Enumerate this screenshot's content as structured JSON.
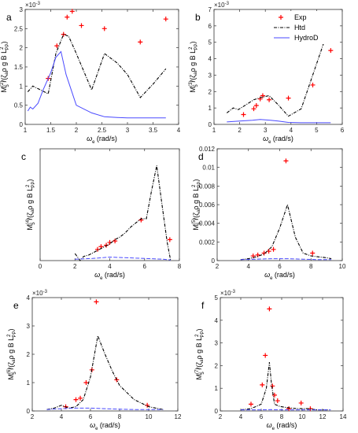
{
  "legend": {
    "placement": "top-right of panel b",
    "entries": [
      "Exp",
      "Htd",
      "HydroD"
    ]
  },
  "colors": {
    "exp": "#ff0000",
    "htd": "#000000",
    "hydrod": "#4a4aff"
  },
  "chart_data": [
    {
      "type": "line",
      "panel_label": "a",
      "exponent": "×10",
      "exp_sup": "-3",
      "ylabel_base": "M",
      "ylabel_sup": "(2)",
      "ylabel_sub": "5",
      "ylabel_rest": "/(ζ",
      "ylabel_a": "a",
      "ylabel_tail": "ρ g B L",
      "ylabel_pp": "PP",
      "ylabel_two": "2",
      "ylabel_close": ")",
      "xlabel_main": "ω",
      "xlabel_sub": "e",
      "xlabel_unit": " (rad/s)",
      "xlim": [
        1,
        4
      ],
      "ylim": [
        0,
        3
      ],
      "xticks": [
        1,
        1.5,
        2,
        2.5,
        3,
        3.5,
        4
      ],
      "yticks": [
        0,
        0.5,
        1,
        1.5,
        2,
        2.5,
        3
      ],
      "series": [
        {
          "name": "Exp",
          "style": "marker",
          "x": [
            1.45,
            1.62,
            1.75,
            1.82,
            1.92,
            2.1,
            2.55,
            3.25,
            3.75
          ],
          "y": [
            1.2,
            2.05,
            2.35,
            2.8,
            2.95,
            2.58,
            2.5,
            2.15,
            2.75
          ]
        },
        {
          "name": "Htd",
          "style": "dashdot",
          "x": [
            1.05,
            1.15,
            1.3,
            1.45,
            1.6,
            1.75,
            1.85,
            2.0,
            2.3,
            2.55,
            2.8,
            3.0,
            3.25,
            3.5,
            3.75
          ],
          "y": [
            0.85,
            1.0,
            0.9,
            0.8,
            1.85,
            2.35,
            2.3,
            1.85,
            0.9,
            1.85,
            1.6,
            1.3,
            0.7,
            1.05,
            1.45
          ]
        },
        {
          "name": "HydroD",
          "style": "solid",
          "x": [
            1.05,
            1.1,
            1.15,
            1.25,
            1.35,
            1.5,
            1.6,
            1.7,
            1.8,
            1.9,
            2.0,
            2.3,
            2.55,
            2.8,
            3.0,
            3.25,
            3.5,
            3.75
          ],
          "y": [
            0.35,
            0.45,
            0.4,
            0.55,
            0.9,
            1.35,
            1.75,
            1.9,
            1.3,
            0.9,
            0.5,
            0.3,
            0.2,
            0.18,
            0.17,
            0.17,
            0.17,
            0.17
          ]
        }
      ]
    },
    {
      "type": "line",
      "panel_label": "b",
      "exponent": "×10",
      "exp_sup": "-3",
      "ylabel_base": "M",
      "ylabel_sup": "(3)",
      "ylabel_sub": "5",
      "ylabel_rest": "/(ζ",
      "ylabel_a": "a",
      "ylabel_tail": "ρ g B L",
      "ylabel_pp": "PP",
      "ylabel_two": "2",
      "ylabel_close": ")",
      "xlabel_main": "ω",
      "xlabel_sub": "e",
      "xlabel_unit": " (rad/s)",
      "xlim": [
        1,
        6
      ],
      "ylim": [
        0,
        7
      ],
      "xticks": [
        1,
        2,
        3,
        4,
        5,
        6
      ],
      "yticks": [
        0,
        1,
        2,
        3,
        4,
        5,
        6,
        7
      ],
      "series": [
        {
          "name": "Exp",
          "style": "marker",
          "x": [
            2.15,
            2.55,
            2.65,
            2.8,
            2.9,
            3.15,
            3.9,
            4.85,
            5.55
          ],
          "y": [
            0.6,
            0.95,
            1.15,
            1.55,
            1.75,
            1.5,
            1.6,
            2.4,
            4.5
          ]
        },
        {
          "name": "Htd",
          "style": "dashdot",
          "x": [
            1.5,
            1.75,
            1.95,
            2.25,
            2.55,
            2.85,
            3.15,
            3.5,
            3.9,
            4.4,
            5.55
          ],
          "y": [
            0.7,
            1.0,
            0.9,
            1.2,
            1.5,
            1.65,
            1.75,
            1.2,
            0.5,
            0.95,
            6.2
          ]
        },
        {
          "name": "HydroD",
          "style": "solid",
          "x": [
            1.5,
            2.0,
            2.5,
            2.8,
            3.2,
            3.5,
            3.9,
            4.4,
            5.0,
            5.55
          ],
          "y": [
            0.15,
            0.2,
            0.25,
            0.3,
            0.25,
            0.2,
            0.12,
            0.1,
            0.1,
            0.1
          ]
        }
      ]
    },
    {
      "type": "line",
      "panel_label": "c",
      "exponent": "",
      "exp_sup": "",
      "ylabel_base": "M",
      "ylabel_sup": "(4)",
      "ylabel_sub": "5",
      "ylabel_rest": "/(ζ",
      "ylabel_a": "a",
      "ylabel_tail": "ρ g B L",
      "ylabel_pp": "PP",
      "ylabel_two": "2",
      "ylabel_close": ")",
      "xlabel_main": "ω",
      "xlabel_sub": "e",
      "xlabel_unit": " (rad/s)",
      "xlim": [
        0,
        8
      ],
      "ylim": [
        0,
        8
      ],
      "xticks": [
        0,
        2,
        4,
        6,
        8
      ],
      "yticks": [],
      "series": [
        {
          "name": "Exp",
          "style": "marker",
          "x": [
            3.3,
            3.5,
            3.8,
            4.0,
            4.3,
            5.8,
            7.45
          ],
          "y": [
            0.8,
            1.0,
            1.1,
            1.3,
            1.4,
            2.9,
            1.5
          ]
        },
        {
          "name": "Htd",
          "style": "dashdot",
          "x": [
            2.0,
            2.3,
            2.5,
            2.8,
            3.1,
            3.4,
            3.7,
            4.0,
            4.3,
            4.6,
            4.9,
            5.2,
            5.5,
            5.8,
            6.1,
            6.4,
            6.7,
            7.0,
            7.3,
            7.5
          ],
          "y": [
            0.5,
            0.0,
            0.3,
            0.4,
            0.6,
            0.8,
            1.0,
            1.2,
            1.5,
            1.7,
            2.0,
            2.4,
            2.7,
            3.0,
            3.0,
            5.0,
            6.8,
            4.0,
            1.3,
            0.0
          ]
        },
        {
          "name": "HydroD",
          "style": "dashed",
          "x": [
            2.0,
            3.0,
            4.0,
            5.0,
            6.0,
            7.0,
            7.5
          ],
          "y": [
            0.1,
            0.15,
            0.25,
            0.2,
            0.15,
            0.1,
            0.05
          ]
        }
      ]
    },
    {
      "type": "line",
      "panel_label": "d",
      "exponent": "",
      "exp_sup": "",
      "ylabel_base": "M",
      "ylabel_sup": "(5)",
      "ylabel_sub": "5",
      "ylabel_rest": "/(ζ",
      "ylabel_a": "a",
      "ylabel_tail": "ρ g B L",
      "ylabel_pp": "PP",
      "ylabel_two": "2",
      "ylabel_close": ")",
      "xlabel_main": "ω",
      "xlabel_sub": "e",
      "xlabel_unit": " (rad/s)",
      "xlim": [
        2,
        10
      ],
      "ylim": [
        0,
        0.012
      ],
      "xticks": [
        2,
        4,
        6,
        8,
        10
      ],
      "yticks": [
        0,
        0.002,
        0.004,
        0.006,
        0.008,
        0.01,
        0.012
      ],
      "ytick_labels": [
        "0",
        "0.002",
        "0.004",
        "0.006",
        "0.008",
        "0.01",
        "0.012"
      ],
      "series": [
        {
          "name": "Exp",
          "style": "marker",
          "x": [
            4.3,
            4.6,
            5.0,
            5.3,
            5.6,
            6.4,
            8.1
          ],
          "y": [
            0.0005,
            0.0006,
            0.0008,
            0.001,
            0.0012,
            0.0107,
            0.0008
          ]
        },
        {
          "name": "Htd",
          "style": "dashdot",
          "x": [
            3.5,
            4.0,
            4.5,
            5.0,
            5.5,
            6.0,
            6.5,
            7.0,
            7.5,
            8.0,
            8.5,
            9.0,
            9.3
          ],
          "y": [
            0.0001,
            0.0002,
            0.0004,
            0.0007,
            0.0015,
            0.0035,
            0.006,
            0.0025,
            0.0008,
            0.0005,
            0.0004,
            0.0003,
            0.0002
          ]
        },
        {
          "name": "HydroD",
          "style": "dashed",
          "x": [
            3.5,
            4.5,
            5.5,
            6.5,
            7.5,
            8.5,
            9.3
          ],
          "y": [
            0.0001,
            0.00015,
            0.0002,
            0.0002,
            0.00015,
            0.0001,
            0.0001
          ]
        }
      ]
    },
    {
      "type": "line",
      "panel_label": "e",
      "exponent": "×10",
      "exp_sup": "-3",
      "ylabel_base": "M",
      "ylabel_sup": "(6)",
      "ylabel_sub": "5",
      "ylabel_rest": "/(ζ",
      "ylabel_a": "a",
      "ylabel_tail": "ρ g B L",
      "ylabel_pp": "PP",
      "ylabel_two": "2",
      "ylabel_close": ")",
      "xlabel_main": "ω",
      "xlabel_sub": "e",
      "xlabel_unit": " (rad/s)",
      "xlim": [
        2,
        12
      ],
      "ylim": [
        0,
        4
      ],
      "xticks": [
        2,
        4,
        6,
        8,
        10,
        12
      ],
      "yticks": [
        0,
        1,
        2,
        3,
        4
      ],
      "series": [
        {
          "name": "Exp",
          "style": "marker",
          "x": [
            4.3,
            5.0,
            5.3,
            5.7,
            6.1,
            6.4,
            7.8,
            9.9
          ],
          "y": [
            0.15,
            0.4,
            0.45,
            1.0,
            1.45,
            3.85,
            1.1,
            0.2
          ]
        },
        {
          "name": "Htd",
          "style": "dashdot",
          "x": [
            3.0,
            3.5,
            4.0,
            4.5,
            5.0,
            5.5,
            6.0,
            6.5,
            7.0,
            7.5,
            8.0,
            9.0,
            10.0,
            11.0
          ],
          "y": [
            0.05,
            0.1,
            0.2,
            0.1,
            0.15,
            0.4,
            1.2,
            2.65,
            2.0,
            1.4,
            0.9,
            0.4,
            0.15,
            0.05
          ]
        },
        {
          "name": "HydroD",
          "style": "dashed",
          "x": [
            3.0,
            4.0,
            5.0,
            6.0,
            7.0,
            8.0,
            9.0,
            10.0,
            11.0
          ],
          "y": [
            0.05,
            0.08,
            0.1,
            0.1,
            0.08,
            0.06,
            0.05,
            0.05,
            0.05
          ]
        }
      ]
    },
    {
      "type": "line",
      "panel_label": "f",
      "exponent": "×10",
      "exp_sup": "-3",
      "ylabel_base": "M",
      "ylabel_sup": "(7)",
      "ylabel_sub": "5",
      "ylabel_rest": "/(ζ",
      "ylabel_a": "a",
      "ylabel_tail": "ρ g B L",
      "ylabel_pp": "PP",
      "ylabel_two": "2",
      "ylabel_close": ")",
      "xlabel_main": "ω",
      "xlabel_sub": "e",
      "xlabel_unit": " (rad/s)",
      "xlim": [
        2,
        14
      ],
      "ylim": [
        0,
        5
      ],
      "xticks": [
        2,
        4,
        6,
        8,
        10,
        12,
        14
      ],
      "yticks": [
        0,
        1,
        2,
        3,
        4,
        5
      ],
      "series": [
        {
          "name": "Exp",
          "style": "marker",
          "x": [
            5.0,
            6.1,
            6.4,
            6.8,
            7.1,
            7.3,
            7.6,
            8.7,
            9.9,
            10.8
          ],
          "y": [
            0.3,
            1.15,
            2.45,
            4.5,
            1.1,
            0.7,
            0.45,
            0.1,
            0.35,
            0.1
          ]
        },
        {
          "name": "Htd",
          "style": "dashdot",
          "x": [
            4.0,
            5.0,
            6.0,
            6.5,
            6.8,
            7.0,
            7.3,
            7.8,
            8.5,
            9.5,
            10.5,
            11.5,
            12.5
          ],
          "y": [
            0.05,
            0.1,
            0.3,
            1.0,
            2.15,
            1.2,
            0.3,
            0.2,
            0.15,
            0.1,
            0.1,
            0.05,
            0.05
          ]
        },
        {
          "name": "HydroD",
          "style": "dashed",
          "x": [
            4.0,
            5.0,
            6.0,
            7.0,
            8.0,
            9.0,
            10.0,
            11.0,
            12.0,
            12.8
          ],
          "y": [
            0.05,
            0.05,
            0.05,
            0.06,
            0.05,
            0.05,
            0.05,
            0.05,
            0.05,
            0.05
          ]
        }
      ]
    }
  ]
}
